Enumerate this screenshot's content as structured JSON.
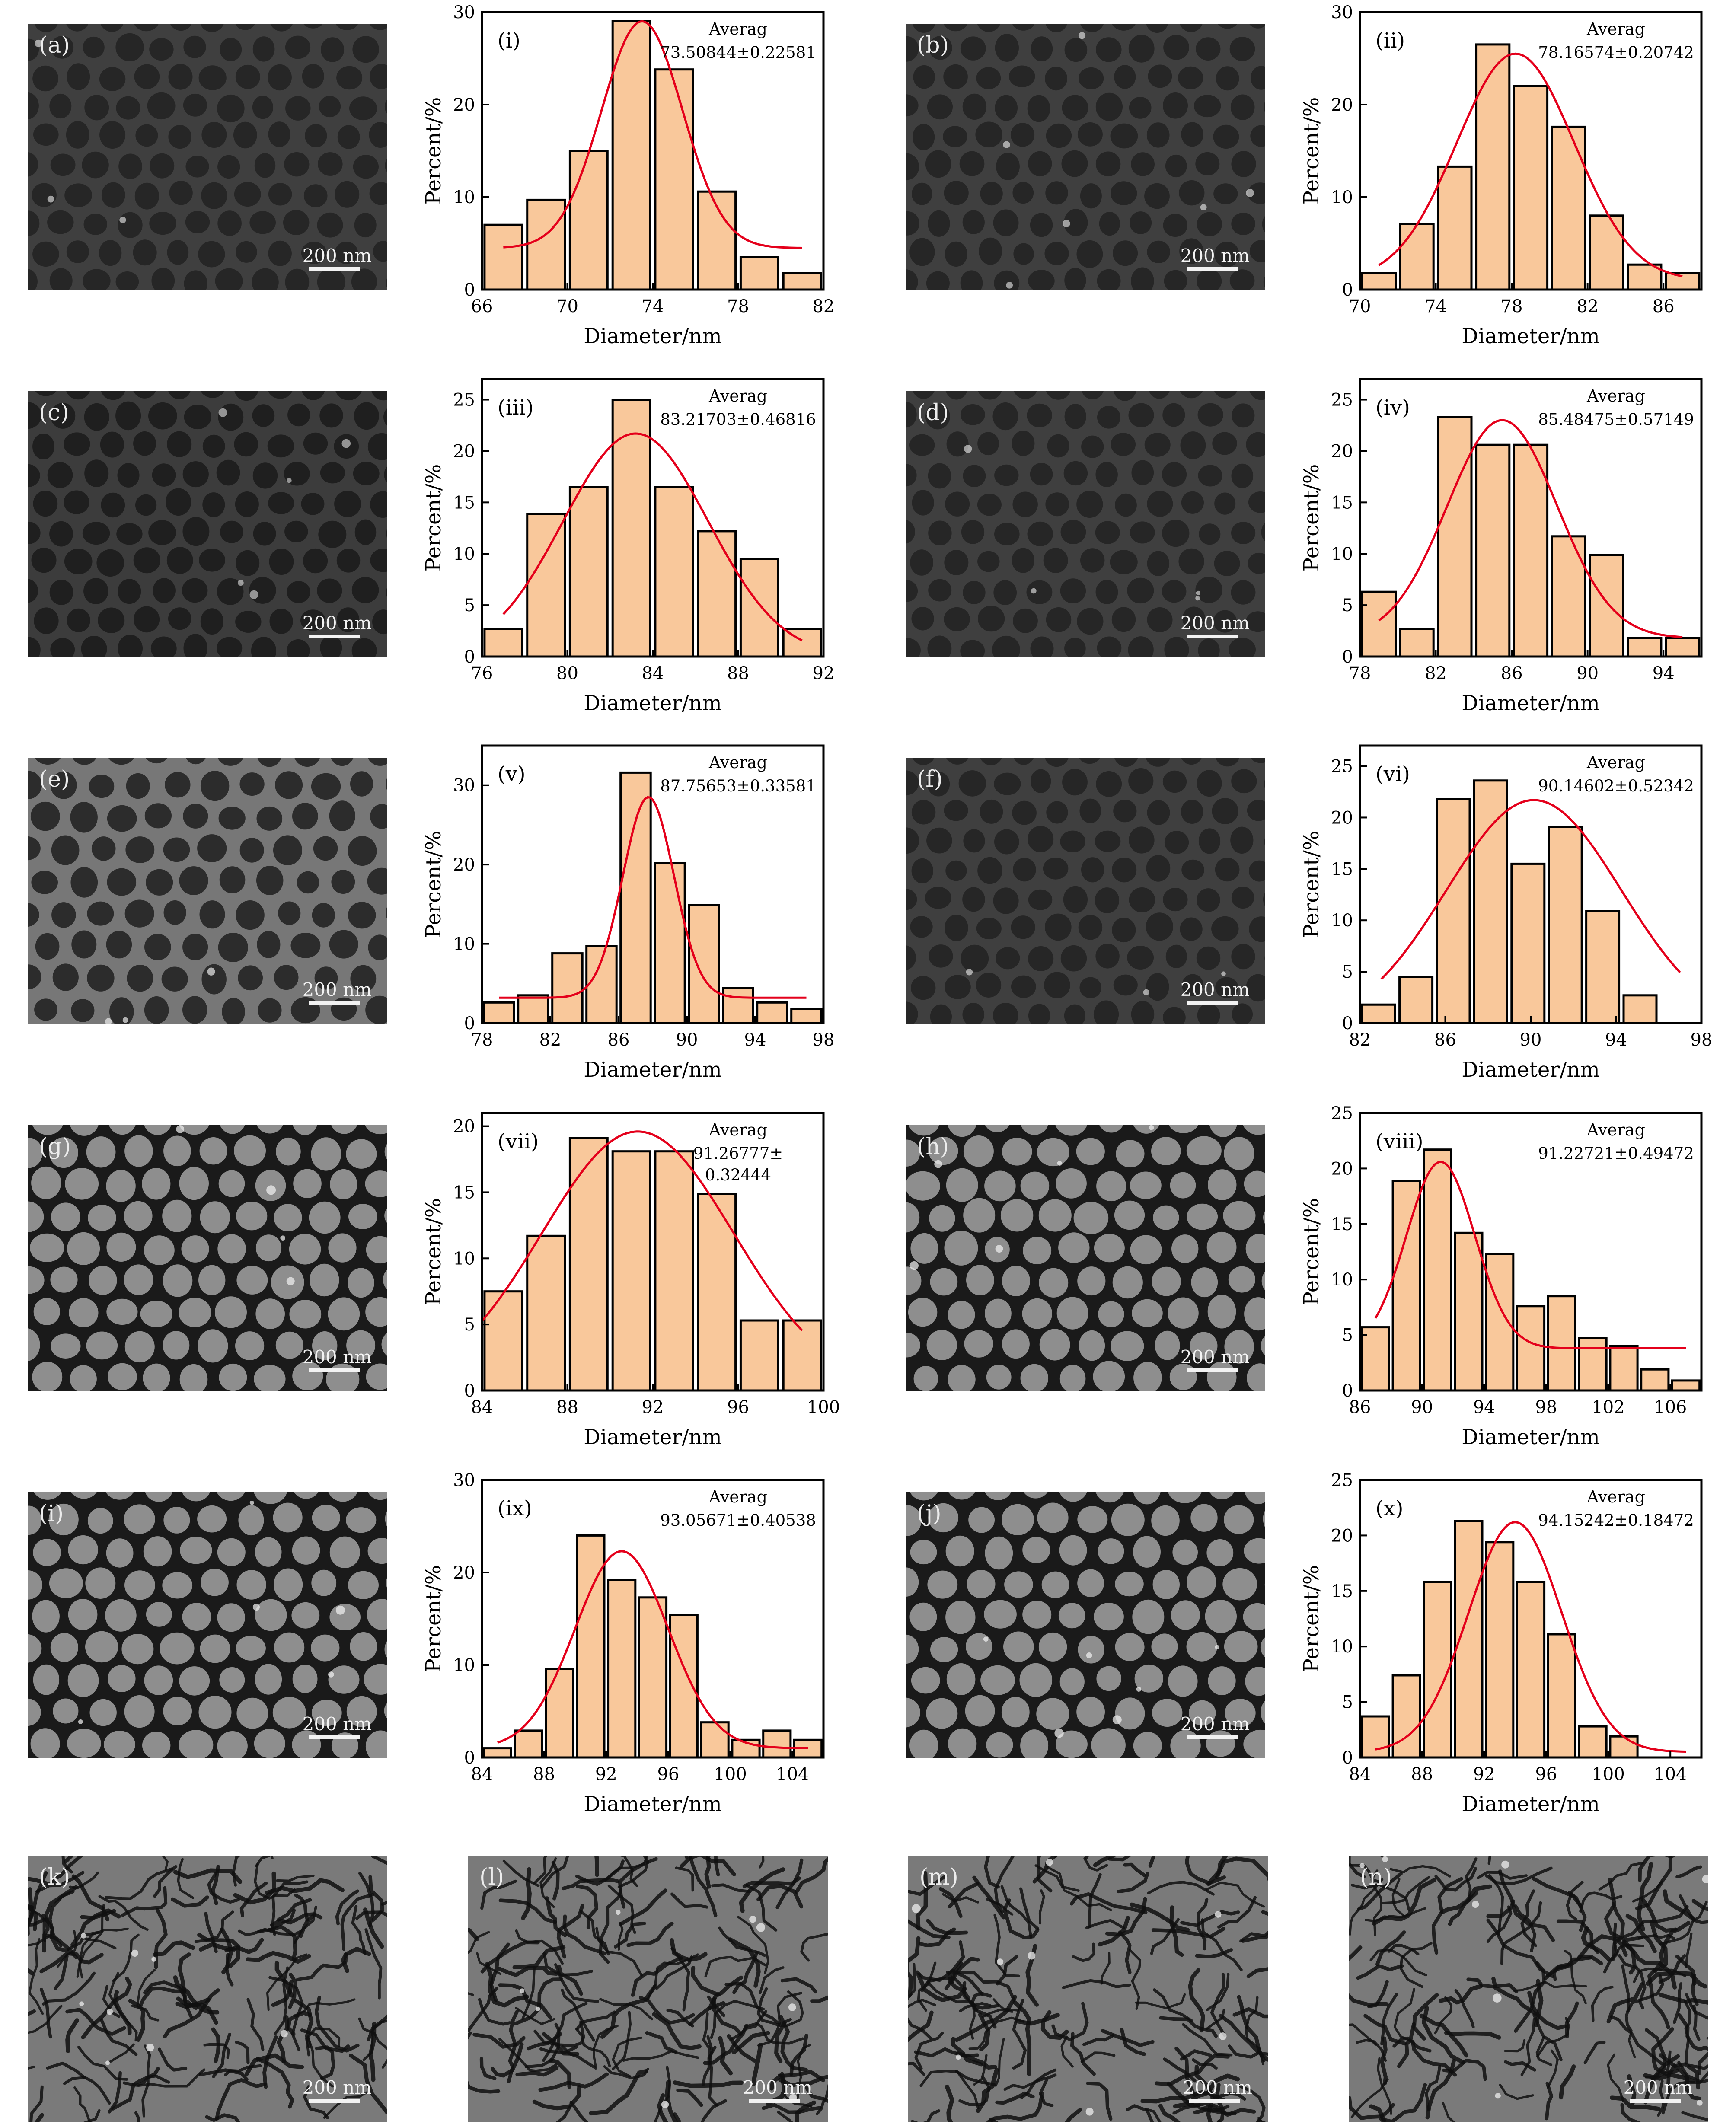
{
  "sem_panels": [
    {
      "label": "(a)",
      "scale_bar": "200 nm",
      "style": "pores-dim"
    },
    {
      "label": "(b)",
      "scale_bar": "200 nm",
      "style": "pores-dim"
    },
    {
      "label": "(c)",
      "scale_bar": "200 nm",
      "style": "pores-dark"
    },
    {
      "label": "(d)",
      "scale_bar": "200 nm",
      "style": "pores-dim"
    },
    {
      "label": "(e)",
      "scale_bar": "200 nm",
      "style": "pores-bright"
    },
    {
      "label": "(f)",
      "scale_bar": "200 nm",
      "style": "pores-dim"
    },
    {
      "label": "(g)",
      "scale_bar": "200 nm",
      "style": "pores-large"
    },
    {
      "label": "(h)",
      "scale_bar": "200 nm",
      "style": "pores-large"
    },
    {
      "label": "(i)",
      "scale_bar": "200 nm",
      "style": "pores-large"
    },
    {
      "label": "(j)",
      "scale_bar": "200 nm",
      "style": "pores-large"
    },
    {
      "label": "(k)",
      "scale_bar": "200 nm",
      "style": "worm"
    },
    {
      "label": "(l)",
      "scale_bar": "200 nm",
      "style": "worm"
    },
    {
      "label": "(m)",
      "scale_bar": "200 nm",
      "style": "worm"
    },
    {
      "label": "(n)",
      "scale_bar": "200 nm",
      "style": "worm"
    }
  ],
  "colors": {
    "bar_fill": "#f9c89b",
    "bar_edge": "#000000",
    "fit_line": "#e4001b"
  },
  "chart_data": [
    {
      "type": "bar",
      "panel": "(i)",
      "annotation_title": "Averag",
      "annotation_value": [
        "73.50844±0.22581"
      ],
      "xlabel": "Diameter/nm",
      "ylabel": "Percent/%",
      "xlim": [
        66,
        82
      ],
      "ylim": [
        0,
        30
      ],
      "xticks": [
        66,
        70,
        74,
        78,
        82
      ],
      "yticks": [
        0,
        10,
        20,
        30
      ],
      "bin_start": 66,
      "bin_width": 2,
      "values": [
        7,
        9.7,
        15,
        29,
        23.8,
        10.6,
        3.5,
        1.8
      ],
      "fit": {
        "mean": 73.5,
        "sigma": 1.9,
        "amp": 24.5,
        "base": 4.5,
        "x_from": 67,
        "x_to": 81
      }
    },
    {
      "type": "bar",
      "panel": "(ii)",
      "annotation_title": "Averag",
      "annotation_value": [
        "78.16574±0.20742"
      ],
      "xlabel": "Diameter/nm",
      "ylabel": "Percent/%",
      "xlim": [
        70,
        88
      ],
      "ylim": [
        0,
        30
      ],
      "xticks": [
        70,
        74,
        78,
        82,
        86
      ],
      "yticks": [
        0,
        10,
        20,
        30
      ],
      "bin_start": 70,
      "bin_width": 2,
      "values": [
        1.8,
        7.1,
        13.3,
        26.5,
        22,
        17.6,
        8,
        2.7,
        1.8
      ],
      "fit": {
        "mean": 78.2,
        "sigma": 3.1,
        "amp": 24.5,
        "base": 1,
        "x_from": 71,
        "x_to": 87
      }
    },
    {
      "type": "bar",
      "panel": "(iii)",
      "annotation_title": "Averag",
      "annotation_value": [
        "83.21703±0.46816"
      ],
      "xlabel": "Diameter/nm",
      "ylabel": "Percent/%",
      "xlim": [
        76,
        92
      ],
      "ylim": [
        0,
        27
      ],
      "xticks": [
        76,
        80,
        84,
        88,
        92
      ],
      "yticks": [
        0,
        5,
        10,
        15,
        20,
        25
      ],
      "bin_start": 76,
      "bin_width": 2,
      "values": [
        2.7,
        13.9,
        16.5,
        25,
        16.5,
        12.2,
        9.5,
        2.7
      ],
      "fit": {
        "mean": 83.2,
        "sigma": 3.4,
        "amp": 21.7,
        "base": 0,
        "x_from": 77,
        "x_to": 91
      }
    },
    {
      "type": "bar",
      "panel": "(iv)",
      "annotation_title": "Averag",
      "annotation_value": [
        "85.48475±0.57149"
      ],
      "xlabel": "Diameter/nm",
      "ylabel": "Percent/%",
      "xlim": [
        78,
        96
      ],
      "ylim": [
        0,
        27
      ],
      "xticks": [
        78,
        82,
        86,
        90,
        94
      ],
      "yticks": [
        0,
        5,
        10,
        15,
        20,
        25
      ],
      "bin_start": 78,
      "bin_width": 2,
      "values": [
        6.3,
        2.7,
        23.3,
        20.6,
        20.6,
        11.7,
        9.9,
        1.8,
        1.8
      ],
      "fit": {
        "mean": 85.5,
        "sigma": 2.9,
        "amp": 21.2,
        "base": 1.8,
        "x_from": 79,
        "x_to": 95
      }
    },
    {
      "type": "bar",
      "panel": "(v)",
      "annotation_title": "Averag",
      "annotation_value": [
        "87.75653±0.33581"
      ],
      "xlabel": "Diameter/nm",
      "ylabel": "Percent/%",
      "xlim": [
        78,
        98
      ],
      "ylim": [
        0,
        35
      ],
      "xticks": [
        78,
        82,
        86,
        90,
        94,
        98
      ],
      "yticks": [
        0,
        10,
        20,
        30
      ],
      "bin_start": 78,
      "bin_width": 2,
      "values": [
        2.6,
        3.5,
        8.8,
        9.7,
        31.6,
        20.2,
        14.9,
        4.4,
        2.6,
        1.8
      ],
      "fit": {
        "mean": 87.75,
        "sigma": 1.5,
        "amp": 25.3,
        "base": 3.2,
        "x_from": 79,
        "x_to": 97
      }
    },
    {
      "type": "bar",
      "panel": "(vi)",
      "annotation_title": "Averag",
      "annotation_value": [
        "90.14602±0.52342"
      ],
      "xlabel": "Diameter/nm",
      "ylabel": "Percent/%",
      "xlim": [
        82,
        98
      ],
      "ylim": [
        0,
        27
      ],
      "xticks": [
        82,
        86,
        90,
        94,
        98
      ],
      "yticks": [
        0,
        5,
        10,
        15,
        20,
        25
      ],
      "bin_start": 82,
      "bin_width": 1.75,
      "values": [
        1.8,
        4.5,
        21.8,
        23.6,
        15.5,
        19.1,
        10.9,
        2.7
      ],
      "fit": {
        "mean": 90.15,
        "sigma": 4.1,
        "amp": 22.3,
        "base": -0.6,
        "x_from": 83,
        "x_to": 97
      }
    },
    {
      "type": "bar",
      "panel": "(vii)",
      "annotation_title": "Averag",
      "annotation_value": [
        "91.26777±",
        "0.32444"
      ],
      "xlabel": "Diameter/nm",
      "ylabel": "Percent/%",
      "xlim": [
        84,
        100
      ],
      "ylim": [
        0,
        21
      ],
      "xticks": [
        84,
        88,
        92,
        96,
        100
      ],
      "yticks": [
        0,
        5,
        10,
        15,
        20
      ],
      "bin_start": 84,
      "bin_width": 2,
      "values": [
        7.5,
        11.7,
        19.1,
        18.1,
        18.1,
        14.9,
        5.3,
        5.3
      ],
      "fit": {
        "mean": 91.3,
        "sigma": 4.5,
        "amp": 19.6,
        "base": 0,
        "x_from": 84,
        "x_to": 99
      }
    },
    {
      "type": "bar",
      "panel": "(viii)",
      "annotation_title": "Averag",
      "annotation_value": [
        "91.22721±0.49472"
      ],
      "xlabel": "Diameter/nm",
      "ylabel": "Percent/%",
      "xlim": [
        86,
        108
      ],
      "ylim": [
        0,
        25
      ],
      "xticks": [
        86,
        90,
        94,
        98,
        102,
        106
      ],
      "yticks": [
        0,
        5,
        10,
        15,
        20,
        25
      ],
      "bin_start": 86,
      "bin_width": 2,
      "values": [
        5.7,
        18.9,
        21.7,
        14.2,
        12.3,
        7.6,
        8.5,
        4.7,
        4,
        1.9,
        0.9
      ],
      "fit": {
        "mean": 91.2,
        "sigma": 2.2,
        "amp": 16.8,
        "base": 3.8,
        "x_from": 87,
        "x_to": 107
      }
    },
    {
      "type": "bar",
      "panel": "(ix)",
      "annotation_title": "Averag",
      "annotation_value": [
        "93.05671±0.40538"
      ],
      "xlabel": "Diameter/nm",
      "ylabel": "Percent/%",
      "xlim": [
        84,
        106
      ],
      "ylim": [
        0,
        30
      ],
      "xticks": [
        84,
        88,
        92,
        96,
        100,
        104
      ],
      "yticks": [
        0,
        10,
        20,
        30
      ],
      "bin_start": 84,
      "bin_width": 2,
      "values": [
        1,
        2.9,
        9.6,
        24,
        19.2,
        17.3,
        15.4,
        3.8,
        1.9,
        2.9,
        1.9
      ],
      "fit": {
        "mean": 93,
        "sigma": 3,
        "amp": 21.3,
        "base": 1,
        "x_from": 85,
        "x_to": 105
      }
    },
    {
      "type": "bar",
      "panel": "(x)",
      "annotation_title": "Averag",
      "annotation_value": [
        "94.15242±0.18472"
      ],
      "xlabel": "Diameter/nm",
      "ylabel": "Percent/%",
      "xlim": [
        84,
        106
      ],
      "ylim": [
        0,
        25
      ],
      "xticks": [
        84,
        88,
        92,
        96,
        100,
        104
      ],
      "yticks": [
        0,
        5,
        10,
        15,
        20,
        25
      ],
      "bin_start": 84,
      "bin_width": 2,
      "values": [
        3.7,
        7.4,
        15.8,
        21.3,
        19.4,
        15.8,
        11.1,
        2.8,
        1.9
      ],
      "fit": {
        "mean": 94,
        "sigma": 3,
        "amp": 20.7,
        "base": 0.5,
        "x_from": 85,
        "x_to": 105
      }
    }
  ]
}
